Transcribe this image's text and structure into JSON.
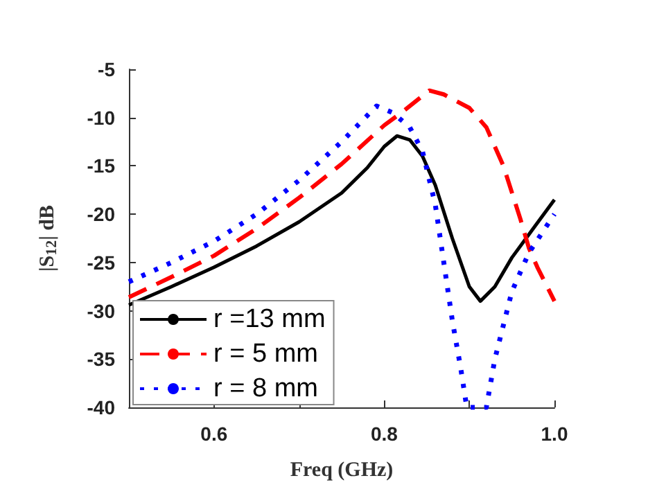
{
  "chart_data": {
    "type": "line",
    "xlabel": "Freq (GHz)",
    "ylabel": "|S$_{12}$| dB",
    "xlim": [
      0.5,
      1.0
    ],
    "ylim": [
      -40,
      -5
    ],
    "xticks": [
      {
        "value": 0.5,
        "label": null
      },
      0.6,
      {
        "value": 0.7,
        "label": null
      },
      0.8,
      {
        "value": 0.9,
        "label": null
      },
      {
        "value": 1.0,
        "label": "1.0"
      }
    ],
    "yticks": [
      -40,
      -35,
      -30,
      -25,
      -20,
      -15,
      -10,
      -5
    ],
    "grid": false,
    "legend": "bottom left",
    "marker": "none",
    "series": [
      {
        "name": "r =13 mm",
        "color": "#000000",
        "line_style": "solid",
        "x": [
          0.5,
          0.55,
          0.6,
          0.65,
          0.7,
          0.75,
          0.78,
          0.8,
          0.815,
          0.83,
          0.845,
          0.86,
          0.88,
          0.9,
          0.913,
          0.93,
          0.95,
          0.975,
          1.0
        ],
        "values": [
          -29.4,
          -27.5,
          -25.5,
          -23.3,
          -20.8,
          -17.8,
          -15.2,
          -13,
          -11.9,
          -12.3,
          -14,
          -17,
          -22.5,
          -27.5,
          -29,
          -27.5,
          -24.5,
          -21.5,
          -18.5
        ]
      },
      {
        "name": "r = 5 mm",
        "color": "#ff0000",
        "line_style": "dashed",
        "x": [
          0.5,
          0.55,
          0.6,
          0.65,
          0.7,
          0.75,
          0.8,
          0.82,
          0.853,
          0.87,
          0.9,
          0.92,
          0.94,
          0.96,
          0.97,
          0.98,
          1.0
        ],
        "values": [
          -28.6,
          -26.5,
          -24.3,
          -21.5,
          -18.3,
          -14.8,
          -10.8,
          -9.5,
          -7.2,
          -7.6,
          -9,
          -11,
          -15,
          -20.5,
          -23.5,
          -25.5,
          -29
        ]
      },
      {
        "name": "r = 8 mm",
        "color": "#0000ff",
        "line_style": "dotted",
        "x": [
          0.5,
          0.55,
          0.6,
          0.65,
          0.7,
          0.75,
          0.791,
          0.81,
          0.83,
          0.845,
          0.86,
          0.87,
          0.88,
          0.89,
          0.897,
          0.92,
          0.93,
          0.95,
          0.97,
          1.0
        ],
        "values": [
          -27,
          -25,
          -22.8,
          -20,
          -16.5,
          -12.5,
          -8.8,
          -9.5,
          -11,
          -13.5,
          -19,
          -25,
          -31,
          -36,
          -40,
          -40,
          -35,
          -28,
          -24,
          -20
        ]
      }
    ]
  }
}
